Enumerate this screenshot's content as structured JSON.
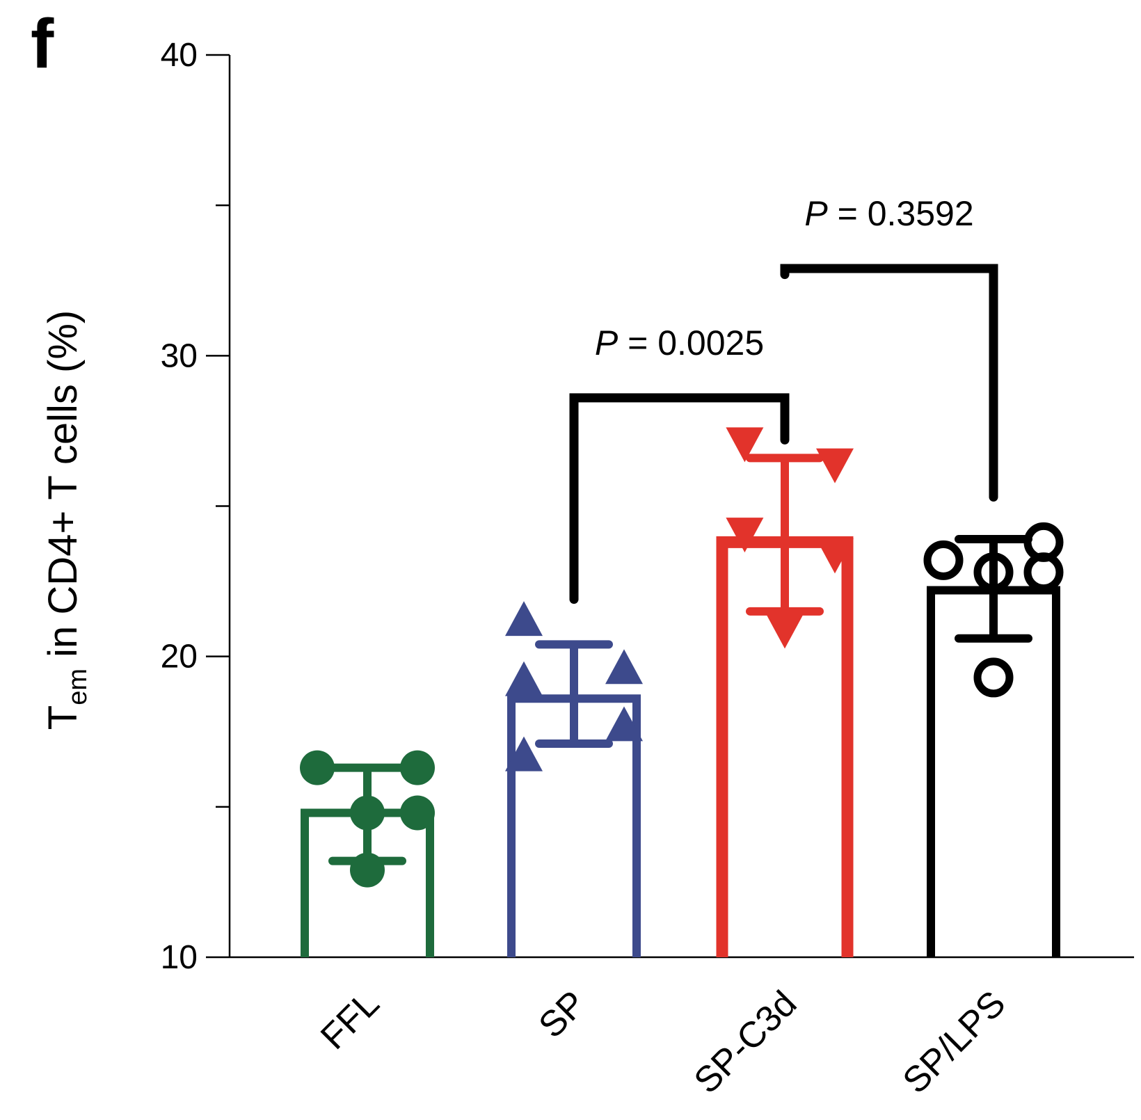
{
  "panel_label": "f",
  "chart_data": {
    "type": "bar",
    "ylabel_main": "T",
    "ylabel_sub": "em",
    "ylabel_rest": " in CD4+ T cells (%)",
    "ylim": [
      10,
      40
    ],
    "yticks": [
      "10",
      "20",
      "30",
      "40"
    ],
    "categories": [
      "FFL",
      "SP",
      "SP-C3d",
      "SP/LPS"
    ],
    "colors": [
      "#1e6b3c",
      "#3d4a8c",
      "#e2332b",
      "#000000"
    ],
    "markers": [
      "filled-circle",
      "filled-triangle-up",
      "filled-triangle-down",
      "open-circle"
    ],
    "means": [
      14.8,
      18.6,
      23.8,
      22.2
    ],
    "sd_upper": [
      16.3,
      20.4,
      26.6,
      23.9
    ],
    "sd_lower": [
      13.2,
      17.1,
      21.5,
      20.6
    ],
    "points": [
      [
        [
          -1,
          16.3
        ],
        [
          1,
          16.3
        ],
        [
          0,
          14.8
        ],
        [
          1,
          14.8
        ],
        [
          0,
          12.9
        ]
      ],
      [
        [
          -1,
          21.1
        ],
        [
          -1,
          19.1
        ],
        [
          1,
          19.5
        ],
        [
          1,
          17.6
        ],
        [
          -1,
          16.6
        ]
      ],
      [
        [
          -0.8,
          27.2
        ],
        [
          1,
          26.5
        ],
        [
          -0.8,
          24.2
        ],
        [
          1,
          23.5
        ],
        [
          0,
          21.0
        ]
      ],
      [
        [
          -1,
          23.2
        ],
        [
          1,
          23.8
        ],
        [
          0,
          22.8
        ],
        [
          1,
          22.8
        ],
        [
          0,
          19.3
        ]
      ]
    ],
    "comparisons": [
      {
        "label_p": "P",
        "label_rest": " = 0.0025",
        "groups": [
          1,
          2
        ],
        "bracket_y": 28.6,
        "left_end": 21.9,
        "right_end": 27.2
      },
      {
        "label_p": "P",
        "label_rest": " = 0.3592",
        "groups": [
          2,
          3
        ],
        "bracket_y": 32.9,
        "left_end": 32.7,
        "right_end": 25.3
      }
    ]
  }
}
